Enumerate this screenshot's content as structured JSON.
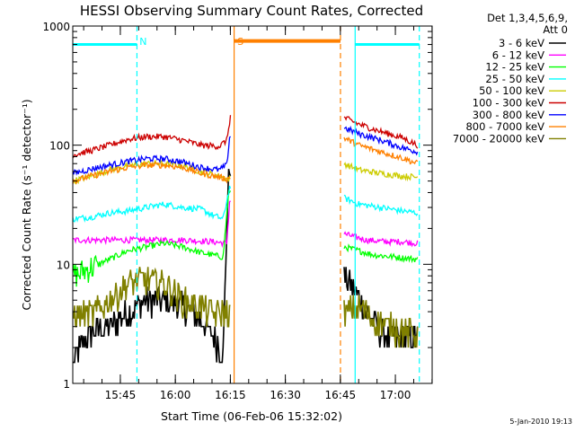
{
  "chart_data": {
    "type": "line",
    "title": "HESSI Observing Summary Count Rates, Corrected",
    "xlabel": "Start Time (06-Feb-06 15:32:02)",
    "ylabel": "Corrected Count Rate (s⁻¹ detector⁻¹)",
    "yscale": "log",
    "ylim": [
      1,
      1000
    ],
    "xlim_minutes_after_start": [
      0,
      98
    ],
    "x_ticks": [
      "15:45",
      "16:00",
      "16:15",
      "16:30",
      "16:45",
      "17:00"
    ],
    "y_ticks": [
      "1",
      "10",
      "100",
      "1000"
    ],
    "legend_header": [
      "Det 1,3,4,5,6,9,",
      "Att 0"
    ],
    "legend_position": "right",
    "timestamp": "5-Jan-2010 19:13",
    "data_gap_minutes": [
      43,
      74
    ],
    "markers": [
      {
        "label": "N",
        "minute": 17.5,
        "style": "dashed",
        "color": "#00ffff"
      },
      {
        "label": "S",
        "minute": 44,
        "style": "solid",
        "color": "#ff8000"
      },
      {
        "label": "",
        "minute": 73,
        "style": "dashed",
        "color": "#ff8000"
      },
      {
        "label": "",
        "minute": 77,
        "style": "solid",
        "color": "#00ffff"
      },
      {
        "label": "",
        "minute": 94.5,
        "style": "dashed",
        "color": "#00ffff"
      }
    ],
    "bars": [
      {
        "color": "#00ffff",
        "y": 700,
        "segments": [
          [
            0,
            17.5
          ],
          [
            77,
            94.5
          ]
        ]
      },
      {
        "color": "#ff8000",
        "y": 750,
        "segments": [
          [
            44,
            73
          ]
        ]
      }
    ],
    "series": [
      {
        "name": "3 - 6 keV",
        "color": "#000000",
        "points": [
          [
            0,
            1.5
          ],
          [
            5,
            2.8
          ],
          [
            10,
            3
          ],
          [
            15,
            4
          ],
          [
            20,
            5
          ],
          [
            25,
            5
          ],
          [
            30,
            4.5
          ],
          [
            35,
            3.5
          ],
          [
            38,
            2.5
          ],
          [
            41,
            1.8
          ],
          [
            42.5,
            60
          ],
          [
            74,
            8
          ],
          [
            77,
            6
          ],
          [
            80,
            4
          ],
          [
            85,
            2.5
          ],
          [
            90,
            2.5
          ],
          [
            94,
            2.5
          ]
        ]
      },
      {
        "name": "6 - 12 keV",
        "color": "#ff00ff",
        "points": [
          [
            0,
            16
          ],
          [
            10,
            16
          ],
          [
            20,
            16
          ],
          [
            30,
            16
          ],
          [
            38,
            15.5
          ],
          [
            42,
            15
          ],
          [
            42.8,
            35
          ],
          [
            74,
            18
          ],
          [
            80,
            16
          ],
          [
            85,
            15.5
          ],
          [
            90,
            15.5
          ],
          [
            94,
            15
          ]
        ]
      },
      {
        "name": "12 - 25 keV",
        "color": "#00ff00",
        "points": [
          [
            0,
            8
          ],
          [
            5,
            9.5
          ],
          [
            10,
            11
          ],
          [
            15,
            13
          ],
          [
            20,
            14
          ],
          [
            25,
            15
          ],
          [
            30,
            14
          ],
          [
            35,
            12.5
          ],
          [
            38,
            12
          ],
          [
            41,
            11.5
          ],
          [
            42.5,
            40
          ],
          [
            74,
            14
          ],
          [
            78,
            13
          ],
          [
            82,
            12
          ],
          [
            88,
            11.5
          ],
          [
            94,
            11
          ]
        ]
      },
      {
        "name": "25 - 50 keV",
        "color": "#00ffff",
        "points": [
          [
            0,
            24
          ],
          [
            5,
            25
          ],
          [
            10,
            27
          ],
          [
            15,
            28
          ],
          [
            20,
            30
          ],
          [
            25,
            32
          ],
          [
            30,
            30
          ],
          [
            35,
            29
          ],
          [
            38,
            26
          ],
          [
            41,
            24
          ],
          [
            42.8,
            45
          ],
          [
            74,
            36
          ],
          [
            78,
            32
          ],
          [
            84,
            30
          ],
          [
            90,
            28
          ],
          [
            94,
            27
          ]
        ]
      },
      {
        "name": "50 - 100 keV",
        "color": "#cccc00",
        "points": [
          [
            0,
            50
          ],
          [
            5,
            55
          ],
          [
            10,
            62
          ],
          [
            15,
            67
          ],
          [
            20,
            70
          ],
          [
            25,
            70
          ],
          [
            30,
            67
          ],
          [
            35,
            60
          ],
          [
            40,
            55
          ],
          [
            42,
            52
          ],
          [
            74,
            70
          ],
          [
            78,
            62
          ],
          [
            84,
            58
          ],
          [
            90,
            55
          ],
          [
            94,
            54
          ]
        ]
      },
      {
        "name": "100 - 300 keV",
        "color": "#cc0000",
        "points": [
          [
            0,
            83
          ],
          [
            5,
            90
          ],
          [
            10,
            100
          ],
          [
            15,
            112
          ],
          [
            20,
            118
          ],
          [
            25,
            118
          ],
          [
            30,
            110
          ],
          [
            35,
            100
          ],
          [
            40,
            98
          ],
          [
            42,
            110
          ],
          [
            43,
            175
          ],
          [
            74,
            170
          ],
          [
            78,
            150
          ],
          [
            84,
            130
          ],
          [
            90,
            115
          ],
          [
            94,
            100
          ]
        ]
      },
      {
        "name": "300 - 800 keV",
        "color": "#0000ff",
        "points": [
          [
            0,
            58
          ],
          [
            5,
            63
          ],
          [
            10,
            68
          ],
          [
            15,
            73
          ],
          [
            20,
            77
          ],
          [
            25,
            77
          ],
          [
            30,
            72
          ],
          [
            35,
            65
          ],
          [
            40,
            62
          ],
          [
            42,
            68
          ],
          [
            42.8,
            120
          ],
          [
            74,
            140
          ],
          [
            78,
            125
          ],
          [
            84,
            110
          ],
          [
            90,
            95
          ],
          [
            94,
            88
          ]
        ]
      },
      {
        "name": "800 - 7000 keV",
        "color": "#ff8000",
        "points": [
          [
            0,
            50
          ],
          [
            5,
            55
          ],
          [
            10,
            60
          ],
          [
            15,
            65
          ],
          [
            20,
            68
          ],
          [
            25,
            68
          ],
          [
            30,
            65
          ],
          [
            35,
            58
          ],
          [
            40,
            54
          ],
          [
            42,
            52
          ],
          [
            74,
            115
          ],
          [
            78,
            100
          ],
          [
            84,
            88
          ],
          [
            90,
            78
          ],
          [
            94,
            70
          ]
        ]
      },
      {
        "name": "7000 - 20000 keV",
        "color": "#808000",
        "points": [
          [
            0,
            3.8
          ],
          [
            5,
            3.8
          ],
          [
            10,
            5
          ],
          [
            15,
            7
          ],
          [
            20,
            7.5
          ],
          [
            25,
            7
          ],
          [
            30,
            5
          ],
          [
            35,
            4.5
          ],
          [
            38,
            3.8
          ],
          [
            41,
            4
          ],
          [
            74,
            4
          ],
          [
            78,
            4.5
          ],
          [
            82,
            3.5
          ],
          [
            88,
            3
          ],
          [
            94,
            2.5
          ]
        ]
      }
    ]
  }
}
